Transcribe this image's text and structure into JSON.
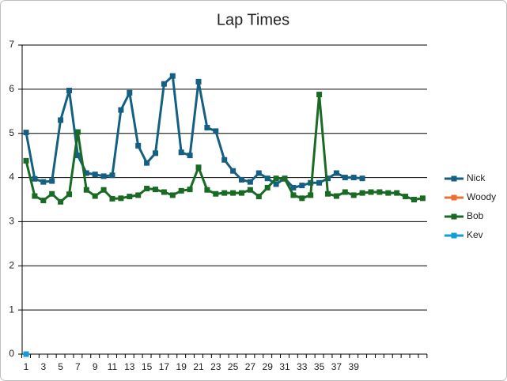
{
  "chart_data": {
    "type": "line",
    "title": "Lap Times",
    "categories": [
      "1",
      null,
      "3",
      null,
      "5",
      null,
      "7",
      null,
      "9",
      null,
      "11",
      null,
      "13",
      null,
      "15",
      null,
      "17",
      null,
      "19",
      null,
      "21",
      null,
      "23",
      null,
      "25",
      null,
      "27",
      null,
      "29",
      null,
      "31",
      null,
      "33",
      null,
      "35",
      null,
      "37",
      null,
      "39",
      null,
      null,
      null,
      null,
      null,
      null,
      null,
      null
    ],
    "series": [
      {
        "name": "Nick",
        "color": "#156082",
        "values": [
          5.02,
          3.97,
          3.9,
          3.92,
          5.3,
          5.97,
          4.5,
          4.1,
          4.07,
          4.03,
          4.05,
          5.53,
          5.92,
          4.72,
          4.33,
          4.55,
          6.12,
          6.3,
          4.57,
          4.5,
          6.17,
          5.13,
          5.05,
          4.4,
          4.15,
          3.95,
          3.9,
          4.1,
          3.98,
          3.85,
          3.98,
          3.77,
          3.82,
          3.88,
          3.88,
          3.98,
          4.1,
          4.0,
          4.0,
          3.98,
          null,
          null,
          null,
          null,
          null,
          null,
          null
        ]
      },
      {
        "name": "Woody",
        "color": "#e97132",
        "values": [
          null,
          null,
          null,
          null,
          null,
          null,
          null,
          null,
          null,
          null,
          null,
          null,
          null,
          null,
          null,
          null,
          null,
          null,
          null,
          null,
          null,
          null,
          null,
          null,
          null,
          null,
          null,
          null,
          null,
          null,
          null,
          null,
          null,
          null,
          null,
          null,
          null,
          null,
          null,
          null,
          null,
          null,
          null,
          null,
          null,
          null,
          null
        ]
      },
      {
        "name": "Bob",
        "color": "#196b24",
        "values": [
          4.38,
          3.58,
          3.48,
          3.63,
          3.45,
          3.62,
          5.03,
          3.72,
          3.58,
          3.72,
          3.52,
          3.53,
          3.57,
          3.6,
          3.75,
          3.73,
          3.67,
          3.6,
          3.7,
          3.73,
          4.23,
          3.72,
          3.63,
          3.65,
          3.65,
          3.65,
          3.72,
          3.57,
          3.77,
          3.98,
          3.97,
          3.6,
          3.53,
          3.6,
          5.88,
          3.63,
          3.58,
          3.67,
          3.6,
          3.65,
          3.67,
          3.67,
          3.65,
          3.65,
          3.57,
          3.5,
          3.53
        ]
      },
      {
        "name": "Kev",
        "color": "#0f9ed5",
        "values": [
          0,
          null,
          null,
          null,
          null,
          null,
          null,
          null,
          null,
          null,
          null,
          null,
          null,
          null,
          null,
          null,
          null,
          null,
          null,
          null,
          null,
          null,
          null,
          null,
          null,
          null,
          null,
          null,
          null,
          null,
          null,
          null,
          null,
          null,
          null,
          null,
          null,
          null,
          null,
          null,
          null,
          null,
          null,
          null,
          null,
          null,
          null
        ]
      }
    ],
    "ylim": [
      0,
      7
    ],
    "yticks": [
      0,
      1,
      2,
      3,
      4,
      5,
      6,
      7
    ],
    "grid": true,
    "legend": "right"
  }
}
